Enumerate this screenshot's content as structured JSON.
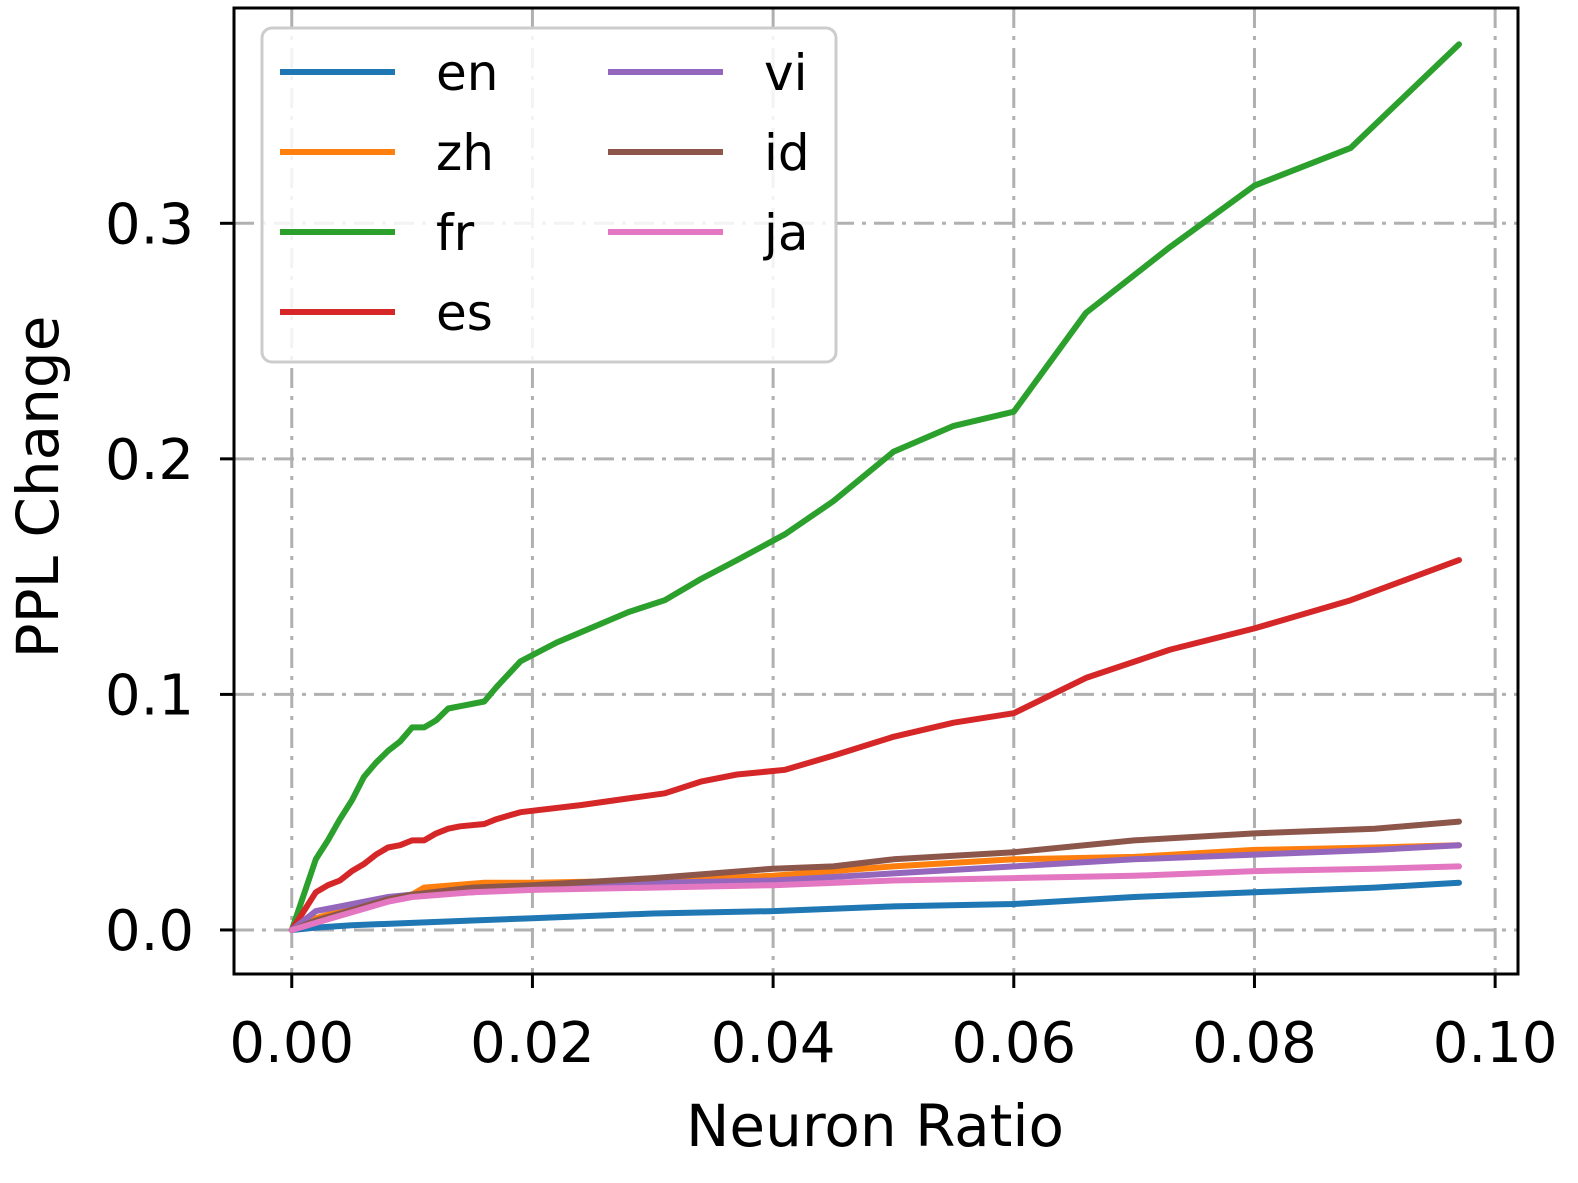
{
  "chart_data": {
    "type": "line",
    "title": "",
    "xlabel": "Neuron Ratio",
    "ylabel": "PPL Change",
    "xlim": [
      -0.0048,
      0.1019
    ],
    "ylim": [
      -0.0187,
      0.3914
    ],
    "xticks": [
      0.0,
      0.02,
      0.04,
      0.06,
      0.08,
      0.1
    ],
    "xtick_labels": [
      "0.00",
      "0.02",
      "0.04",
      "0.06",
      "0.08",
      "0.10"
    ],
    "yticks": [
      0.0,
      0.1,
      0.2,
      0.3
    ],
    "ytick_labels": [
      "0.0",
      "0.1",
      "0.2",
      "0.3"
    ],
    "grid": true,
    "legend_position": "top-left",
    "legend_columns": 2,
    "series": [
      {
        "name": "en",
        "color": "#1f77b4",
        "x": [
          0.0,
          0.002,
          0.005,
          0.01,
          0.015,
          0.02,
          0.03,
          0.04,
          0.045,
          0.05,
          0.06,
          0.07,
          0.08,
          0.09,
          0.097
        ],
        "y": [
          0.0,
          0.001,
          0.002,
          0.003,
          0.004,
          0.005,
          0.007,
          0.008,
          0.009,
          0.01,
          0.011,
          0.014,
          0.016,
          0.018,
          0.02
        ]
      },
      {
        "name": "zh",
        "color": "#ff7f0e",
        "x": [
          0.0,
          0.002,
          0.004,
          0.006,
          0.008,
          0.01,
          0.011,
          0.016,
          0.02,
          0.03,
          0.04,
          0.05,
          0.06,
          0.07,
          0.08,
          0.09,
          0.097
        ],
        "y": [
          0.0,
          0.005,
          0.008,
          0.01,
          0.013,
          0.015,
          0.018,
          0.02,
          0.02,
          0.021,
          0.023,
          0.027,
          0.03,
          0.031,
          0.034,
          0.035,
          0.036
        ]
      },
      {
        "name": "fr",
        "color": "#2ca02c",
        "x": [
          0.0,
          0.002,
          0.003,
          0.004,
          0.005,
          0.006,
          0.007,
          0.008,
          0.009,
          0.01,
          0.011,
          0.012,
          0.013,
          0.014,
          0.016,
          0.017,
          0.019,
          0.022,
          0.028,
          0.031,
          0.034,
          0.037,
          0.041,
          0.045,
          0.05,
          0.055,
          0.06,
          0.066,
          0.073,
          0.08,
          0.088,
          0.097
        ],
        "y": [
          0.0,
          0.03,
          0.038,
          0.047,
          0.055,
          0.065,
          0.071,
          0.076,
          0.08,
          0.086,
          0.086,
          0.089,
          0.094,
          0.095,
          0.097,
          0.103,
          0.114,
          0.122,
          0.135,
          0.14,
          0.149,
          0.157,
          0.168,
          0.182,
          0.203,
          0.214,
          0.22,
          0.262,
          0.29,
          0.316,
          0.332,
          0.376
        ]
      },
      {
        "name": "es",
        "color": "#d62728",
        "x": [
          0.0,
          0.002,
          0.003,
          0.004,
          0.005,
          0.006,
          0.007,
          0.008,
          0.009,
          0.01,
          0.011,
          0.012,
          0.013,
          0.014,
          0.016,
          0.017,
          0.019,
          0.024,
          0.031,
          0.034,
          0.037,
          0.041,
          0.045,
          0.05,
          0.055,
          0.06,
          0.066,
          0.073,
          0.08,
          0.088,
          0.097
        ],
        "y": [
          0.0,
          0.016,
          0.019,
          0.021,
          0.025,
          0.028,
          0.032,
          0.035,
          0.036,
          0.038,
          0.038,
          0.041,
          0.043,
          0.044,
          0.045,
          0.047,
          0.05,
          0.053,
          0.058,
          0.063,
          0.066,
          0.068,
          0.074,
          0.082,
          0.088,
          0.092,
          0.107,
          0.119,
          0.128,
          0.14,
          0.157
        ]
      },
      {
        "name": "vi",
        "color": "#9467bd",
        "x": [
          0.0,
          0.002,
          0.004,
          0.006,
          0.008,
          0.01,
          0.015,
          0.02,
          0.03,
          0.04,
          0.05,
          0.06,
          0.07,
          0.08,
          0.09,
          0.097
        ],
        "y": [
          0.0,
          0.008,
          0.01,
          0.012,
          0.014,
          0.015,
          0.016,
          0.018,
          0.02,
          0.021,
          0.024,
          0.027,
          0.03,
          0.032,
          0.034,
          0.036
        ]
      },
      {
        "name": "id",
        "color": "#8c564b",
        "x": [
          0.0,
          0.002,
          0.004,
          0.006,
          0.008,
          0.01,
          0.015,
          0.02,
          0.03,
          0.04,
          0.045,
          0.05,
          0.06,
          0.07,
          0.08,
          0.09,
          0.097
        ],
        "y": [
          0.0,
          0.004,
          0.007,
          0.01,
          0.013,
          0.015,
          0.018,
          0.019,
          0.022,
          0.026,
          0.027,
          0.03,
          0.033,
          0.038,
          0.041,
          0.043,
          0.046
        ]
      },
      {
        "name": "ja",
        "color": "#e377c2",
        "x": [
          0.0,
          0.002,
          0.004,
          0.006,
          0.008,
          0.01,
          0.015,
          0.02,
          0.03,
          0.04,
          0.05,
          0.06,
          0.07,
          0.08,
          0.09,
          0.097
        ],
        "y": [
          0.0,
          0.003,
          0.006,
          0.009,
          0.012,
          0.014,
          0.016,
          0.017,
          0.018,
          0.019,
          0.021,
          0.022,
          0.023,
          0.025,
          0.026,
          0.027
        ]
      }
    ]
  }
}
